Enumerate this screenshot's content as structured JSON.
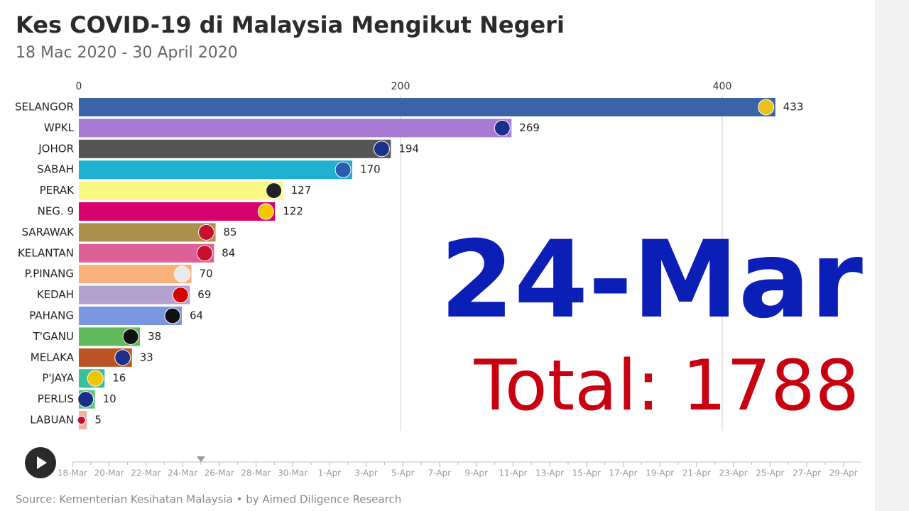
{
  "chart_data": {
    "type": "bar",
    "orientation": "horizontal",
    "title": "Kes COVID-19 di Malaysia Mengikut Negeri",
    "subtitle": "18 Mac 2020 - 30 April 2020",
    "categories": [
      "SELANGOR",
      "WPKL",
      "JOHOR",
      "SABAH",
      "PERAK",
      "NEG. 9",
      "SARAWAK",
      "KELANTAN",
      "P.PINANG",
      "KEDAH",
      "PAHANG",
      "T'GANU",
      "MELAKA",
      "P'JAYA",
      "PERLIS",
      "LABUAN"
    ],
    "values": [
      433,
      269,
      194,
      170,
      127,
      122,
      85,
      84,
      70,
      69,
      64,
      38,
      33,
      16,
      10,
      5
    ],
    "colors": [
      "#3a62a7",
      "#a97ad4",
      "#555555",
      "#1fb0cf",
      "#fbf785",
      "#d9006c",
      "#a98f4a",
      "#dc5f96",
      "#f9b17c",
      "#b4a1cd",
      "#7a96e0",
      "#5fb85c",
      "#bb5325",
      "#3bbf9b",
      "#58c57a",
      "#f1b1a1"
    ],
    "flag_colors": [
      "#e8c21a",
      "#1c2f8a",
      "#1c2f8a",
      "#2a5db0",
      "#222222",
      "#f2c500",
      "#c8102e",
      "#c8102e",
      "#e8e8e8",
      "#d40000",
      "#111111",
      "#111111",
      "#1c2f8a",
      "#f2c500",
      "#1c2f8a",
      "#c8102e"
    ],
    "xlim": [
      0,
      480
    ],
    "xticks": [
      0,
      200,
      400
    ],
    "grid": true,
    "date_label": "24-Mar",
    "total_label": "Total: 1788",
    "timeline": [
      "18-Mar",
      "20-Mar",
      "22-Mar",
      "24-Mar",
      "26-Mar",
      "28-Mar",
      "30-Mar",
      "1-Apr",
      "3-Apr",
      "5-Apr",
      "7-Apr",
      "9-Apr",
      "11-Apr",
      "13-Apr",
      "15-Apr",
      "17-Apr",
      "19-Apr",
      "21-Apr",
      "23-Apr",
      "25-Apr",
      "27-Apr",
      "29-Apr"
    ],
    "source": "Source: Kementerian Kesihatan Malaysia • by Aimed Diligence Research"
  }
}
